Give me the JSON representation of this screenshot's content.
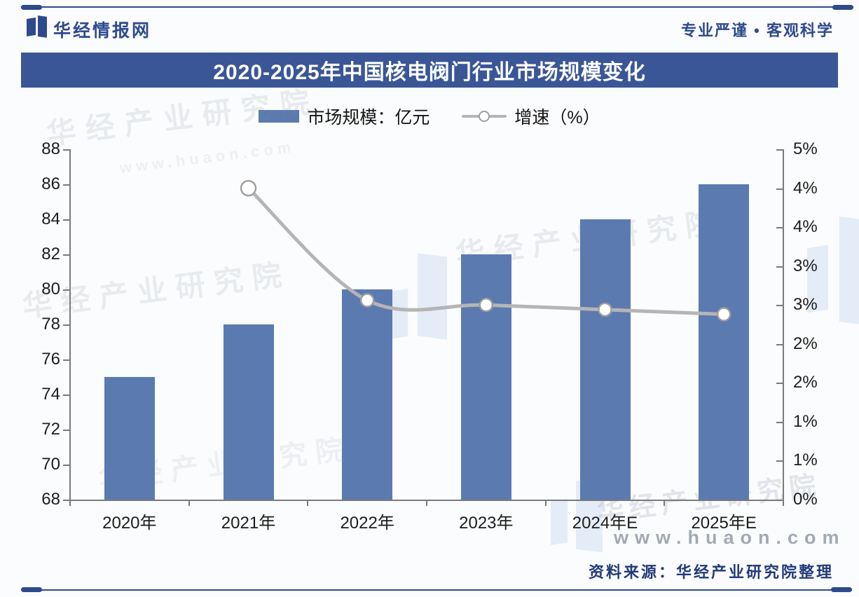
{
  "header": {
    "brand": "华经情报网",
    "slogan": "专业严谨 • 客观科学"
  },
  "title": "2020-2025年中国核电阀门行业市场规模变化",
  "legend": [
    {
      "label": "市场规模：亿元",
      "swatch": "bar-swatch",
      "color": "#5b7ab0"
    },
    {
      "label": "增速（%）",
      "swatch": "line-marker-swatch",
      "color": "#b5b5b5"
    }
  ],
  "watermark": {
    "text": "华经产业研究院",
    "url": "www.huaon.com"
  },
  "footer": {
    "source": "资料来源：华经产业研究院整理"
  },
  "colors": {
    "navy": "#2e4a8c",
    "title_bg": "#3a5697",
    "title_text": "#ffffff",
    "bar": "#5b7ab0",
    "line": "#b5b5b5",
    "marker_fill": "#ffffff",
    "marker_stroke": "#9e9e9e",
    "axis": "#7a7a7a",
    "tick_text": "#1c1c1c",
    "source_text": "#223a78"
  },
  "chart_data": {
    "type": "bar",
    "subtype": "combo-bar-line-dual-axis",
    "title": "2020-2025年中国核电阀门行业市场规模变化",
    "categories": [
      "2020年",
      "2021年",
      "2022年",
      "2023年",
      "2024年E",
      "2025年E"
    ],
    "series": [
      {
        "name": "市场规模：亿元",
        "type": "bar",
        "axis": "left",
        "values": [
          75,
          78,
          80,
          82,
          84,
          86
        ]
      },
      {
        "name": "增速（%）",
        "type": "line",
        "axis": "right",
        "values": [
          null,
          4.0,
          2.56,
          2.5,
          2.44,
          2.38
        ]
      }
    ],
    "left_axis": {
      "min": 68,
      "max": 88,
      "step": 2,
      "tick_labels_top_to_bottom": [
        "88",
        "86",
        "84",
        "82",
        "80",
        "78",
        "76",
        "74",
        "72",
        "70",
        "68"
      ]
    },
    "right_axis": {
      "min": 0,
      "max": 4.5,
      "step": 0.5,
      "tick_labels_top_to_bottom": [
        "5%",
        "4%",
        "4%",
        "3%",
        "3%",
        "2%",
        "2%",
        "1%",
        "1%",
        "0%"
      ]
    },
    "grid": false,
    "legend_position": "top-center"
  }
}
